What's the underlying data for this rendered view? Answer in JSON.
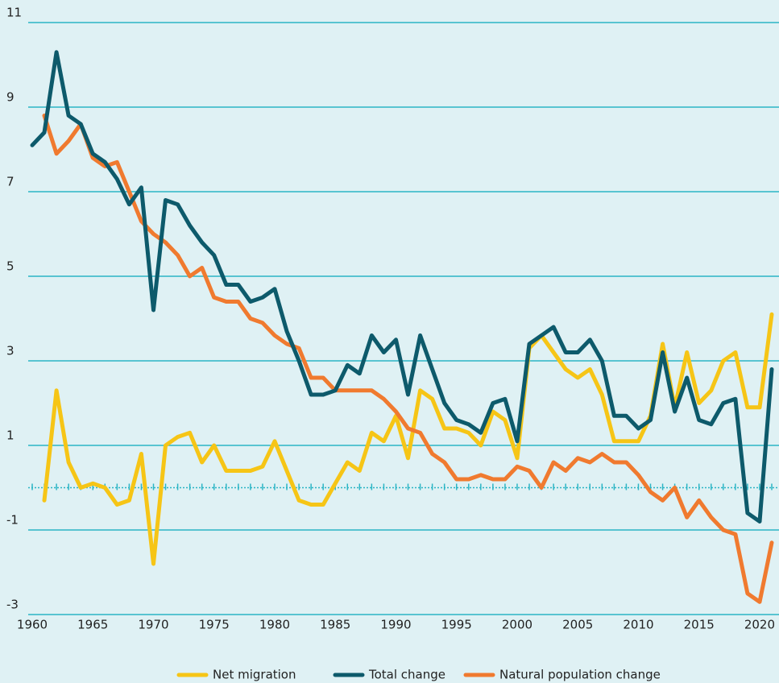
{
  "chart_data": {
    "type": "line",
    "x": [
      1960,
      1961,
      1962,
      1963,
      1964,
      1965,
      1966,
      1967,
      1968,
      1969,
      1970,
      1971,
      1972,
      1973,
      1974,
      1975,
      1976,
      1977,
      1978,
      1979,
      1980,
      1981,
      1982,
      1983,
      1984,
      1985,
      1986,
      1987,
      1988,
      1989,
      1990,
      1991,
      1992,
      1993,
      1994,
      1995,
      1996,
      1997,
      1998,
      1999,
      2000,
      2001,
      2002,
      2003,
      2004,
      2005,
      2006,
      2007,
      2008,
      2009,
      2010,
      2011,
      2012,
      2013,
      2014,
      2015,
      2016,
      2017,
      2018,
      2019,
      2020,
      2021
    ],
    "series": [
      {
        "name": "Net migration",
        "color": "#f6c516",
        "values": [
          null,
          -0.3,
          2.3,
          0.6,
          0.0,
          0.1,
          0.0,
          -0.4,
          -0.3,
          0.8,
          -1.8,
          1.0,
          1.2,
          1.3,
          0.6,
          1.0,
          0.4,
          0.4,
          0.4,
          0.5,
          1.1,
          0.4,
          -0.3,
          -0.4,
          -0.4,
          0.1,
          0.6,
          0.4,
          1.3,
          1.1,
          1.7,
          0.7,
          2.3,
          2.1,
          1.4,
          1.4,
          1.3,
          1.0,
          1.8,
          1.6,
          0.7,
          3.3,
          3.6,
          3.2,
          2.8,
          2.6,
          2.8,
          2.2,
          1.1,
          1.1,
          1.1,
          1.7,
          3.4,
          1.9,
          3.2,
          2.0,
          2.3,
          3.0,
          3.2,
          1.9,
          1.9,
          4.1
        ]
      },
      {
        "name": "Total change",
        "color": "#0d5a6b",
        "values": [
          8.1,
          8.4,
          10.3,
          8.8,
          8.6,
          7.9,
          7.7,
          7.3,
          6.7,
          7.1,
          4.2,
          6.8,
          6.7,
          6.2,
          5.8,
          5.5,
          4.8,
          4.8,
          4.4,
          4.5,
          4.7,
          3.7,
          3.0,
          2.2,
          2.2,
          2.3,
          2.9,
          2.7,
          3.6,
          3.2,
          3.5,
          2.2,
          3.6,
          2.8,
          2.0,
          1.6,
          1.5,
          1.3,
          2.0,
          2.1,
          1.1,
          3.4,
          3.6,
          3.8,
          3.2,
          3.2,
          3.5,
          3.0,
          1.7,
          1.7,
          1.4,
          1.6,
          3.2,
          1.8,
          2.6,
          1.6,
          1.5,
          2.0,
          2.1,
          -0.6,
          -0.8,
          2.8
        ]
      },
      {
        "name": "Natural population change",
        "color": "#f07a2f",
        "values": [
          null,
          8.8,
          7.9,
          8.2,
          8.6,
          7.8,
          7.6,
          7.7,
          7.0,
          6.3,
          6.0,
          5.8,
          5.5,
          5.0,
          5.2,
          4.5,
          4.4,
          4.4,
          4.0,
          3.9,
          3.6,
          3.4,
          3.3,
          2.6,
          2.6,
          2.3,
          2.3,
          2.3,
          2.3,
          2.1,
          1.8,
          1.4,
          1.3,
          0.8,
          0.6,
          0.2,
          0.2,
          0.3,
          0.2,
          0.2,
          0.5,
          0.4,
          0.0,
          0.6,
          0.4,
          0.7,
          0.6,
          0.8,
          0.6,
          0.6,
          0.3,
          -0.1,
          -0.3,
          0.0,
          -0.7,
          -0.3,
          -0.7,
          -1.0,
          -1.1,
          -2.5,
          -2.7,
          -1.3
        ]
      }
    ],
    "xlim": [
      1960,
      2021
    ],
    "xticks": [
      1960,
      1965,
      1970,
      1975,
      1980,
      1985,
      1990,
      1995,
      2000,
      2005,
      2010,
      2015,
      2020
    ],
    "ylim": [
      -3,
      11
    ],
    "yticks": [
      11,
      9,
      7,
      5,
      3,
      1,
      -1,
      -3
    ],
    "grid": true,
    "grid_color": "#2bb5c5",
    "legend": "bottom"
  }
}
